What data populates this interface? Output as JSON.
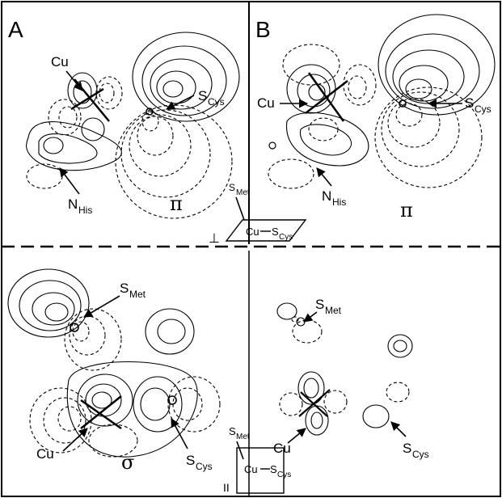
{
  "panels": {
    "a_label": "A",
    "b_label": "B"
  },
  "labels": {
    "cu": "Cu",
    "s": "S",
    "n": "N",
    "cys": "Cys",
    "his": "His",
    "met": "Met",
    "pi": "π",
    "sigma": "σ",
    "perp": "⊥",
    "parallel": "II"
  }
}
